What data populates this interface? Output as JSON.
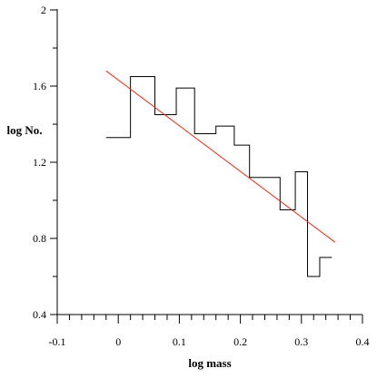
{
  "chart_data": {
    "type": "line",
    "title": "",
    "xlabel": "log mass",
    "ylabel": "log No.",
    "xlim": [
      -0.1,
      0.4
    ],
    "ylim": [
      0.4,
      2.0
    ],
    "xticks": [
      -0.1,
      0,
      0.1,
      0.2,
      0.3,
      0.4
    ],
    "xtick_labels": [
      "-0.1",
      "0",
      "0.1",
      "0.2",
      "0.3",
      "0.4"
    ],
    "yticks": [
      0.4,
      0.8,
      1.2,
      1.6,
      2.0
    ],
    "ytick_labels": [
      "0.4",
      "0.8",
      "1.2",
      "1.6",
      "2"
    ],
    "x_minor_step": 0.02,
    "y_minor_step": 0.2,
    "grid": false,
    "series": [
      {
        "style": "step-histogram",
        "color": "#000000",
        "bins": [
          {
            "x0": -0.02,
            "x1": 0.02,
            "y": 1.33
          },
          {
            "x0": 0.02,
            "x1": 0.06,
            "y": 1.65
          },
          {
            "x0": 0.06,
            "x1": 0.095,
            "y": 1.45
          },
          {
            "x0": 0.095,
            "x1": 0.125,
            "y": 1.59
          },
          {
            "x0": 0.125,
            "x1": 0.16,
            "y": 1.35
          },
          {
            "x0": 0.16,
            "x1": 0.19,
            "y": 1.39
          },
          {
            "x0": 0.19,
            "x1": 0.215,
            "y": 1.29
          },
          {
            "x0": 0.215,
            "x1": 0.265,
            "y": 1.12
          },
          {
            "x0": 0.265,
            "x1": 0.29,
            "y": 0.95
          },
          {
            "x0": 0.29,
            "x1": 0.31,
            "y": 1.15
          },
          {
            "x0": 0.31,
            "x1": 0.33,
            "y": 0.6
          },
          {
            "x0": 0.33,
            "x1": 0.35,
            "y": 0.7
          }
        ]
      },
      {
        "style": "fit-line",
        "color": "#e8261a",
        "x": [
          -0.02,
          0.355
        ],
        "y": [
          1.68,
          0.78
        ]
      }
    ]
  }
}
